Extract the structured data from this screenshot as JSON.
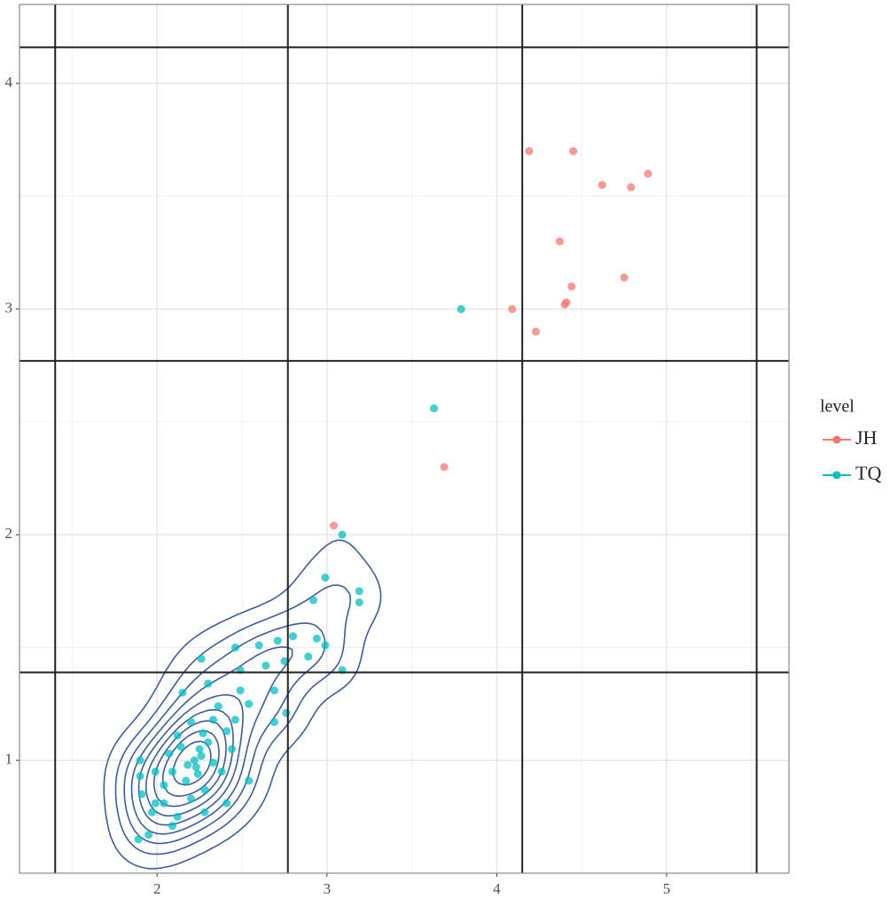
{
  "chart_data": {
    "type": "scatter",
    "series": [
      {
        "name": "JH",
        "color": "#F8766D",
        "x": [
          4.19,
          4.45,
          4.62,
          4.79,
          4.89,
          4.37,
          4.44,
          4.75,
          4.41,
          4.4,
          4.09,
          4.23,
          3.69,
          3.04
        ],
        "values": [
          3.7,
          3.7,
          3.55,
          3.54,
          3.6,
          3.3,
          3.1,
          3.14,
          3.03,
          3.02,
          3.0,
          2.9,
          2.3,
          2.04
        ]
      },
      {
        "name": "TQ",
        "color": "#00BFC4",
        "x": [
          3.79,
          3.63,
          3.09,
          2.99,
          3.19,
          3.19,
          2.92,
          2.99,
          3.09,
          2.89,
          2.94,
          2.26,
          2.46,
          2.6,
          2.71,
          2.8,
          2.49,
          2.64,
          2.75,
          2.69,
          2.76,
          2.69,
          2.54,
          2.49,
          2.3,
          2.15,
          1.9,
          1.9,
          1.91,
          1.89,
          1.95,
          1.97,
          2.04,
          2.09,
          2.12,
          2.28,
          2.41,
          2.54,
          1.99,
          2.07,
          2.12,
          2.2,
          2.33,
          2.41,
          2.44,
          2.25,
          2.23,
          2.17,
          2.09,
          2.33,
          2.28,
          2.38,
          2.04,
          2.2,
          1.99,
          2.46,
          2.36,
          2.22,
          2.26,
          2.18,
          2.3,
          2.24,
          2.14,
          2.27
        ],
        "values": [
          3.0,
          2.56,
          2.0,
          1.81,
          1.75,
          1.7,
          1.71,
          1.51,
          1.4,
          1.46,
          1.54,
          1.45,
          1.5,
          1.51,
          1.53,
          1.55,
          1.4,
          1.42,
          1.44,
          1.31,
          1.21,
          1.17,
          1.25,
          1.31,
          1.34,
          1.3,
          1.0,
          0.93,
          0.85,
          0.65,
          0.67,
          0.77,
          0.81,
          0.71,
          0.75,
          0.77,
          0.81,
          0.91,
          0.95,
          1.03,
          1.11,
          1.17,
          1.18,
          1.13,
          1.05,
          1.05,
          0.97,
          0.91,
          0.95,
          0.99,
          0.87,
          0.95,
          0.89,
          0.83,
          0.81,
          1.18,
          1.24,
          1.0,
          1.02,
          0.98,
          1.08,
          0.94,
          1.06,
          1.12
        ]
      }
    ],
    "density_2d": {
      "series": 1,
      "color": "#3B5BA5",
      "bandwidth": [
        0.15,
        0.12
      ],
      "levels": 9
    },
    "xlim": [
      1.19,
      5.72
    ],
    "ylim": [
      0.5,
      4.35
    ],
    "xticks": [
      2,
      3,
      4,
      5
    ],
    "yticks": [
      1,
      2,
      3,
      4
    ],
    "grid": true,
    "minor_grid": true,
    "vlines": [
      1.4,
      2.77,
      4.15,
      5.53
    ],
    "hlines": [
      1.39,
      2.77,
      4.16
    ],
    "legend_title": "level",
    "legend": "right"
  }
}
